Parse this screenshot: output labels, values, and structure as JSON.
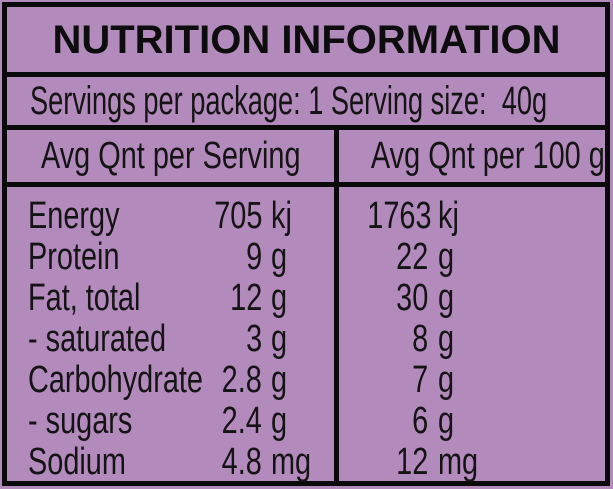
{
  "label": {
    "title": "NUTRITION INFORMATION",
    "servings_line": "Servings per package: 1 Serving size:  40g",
    "columns": [
      "Avg Qnt per Serving",
      "Avg Qnt per 100 g"
    ],
    "rows": [
      {
        "name": "Energy",
        "per_serving": "705",
        "per_serving_unit": "kj",
        "per_100g": "1763",
        "per_100g_unit": "kj"
      },
      {
        "name": "Protein",
        "per_serving": "9",
        "per_serving_unit": "g",
        "per_100g": "22",
        "per_100g_unit": "g"
      },
      {
        "name": "Fat, total",
        "per_serving": "12",
        "per_serving_unit": "g",
        "per_100g": "30",
        "per_100g_unit": "g"
      },
      {
        "name": "- saturated",
        "per_serving": "3",
        "per_serving_unit": "g",
        "per_100g": "8",
        "per_100g_unit": "g"
      },
      {
        "name": "Carbohydrate",
        "per_serving": "2.8",
        "per_serving_unit": "g",
        "per_100g": "7",
        "per_100g_unit": "g"
      },
      {
        "name": "- sugars",
        "per_serving": "2.4",
        "per_serving_unit": "g",
        "per_100g": "6",
        "per_100g_unit": "g"
      },
      {
        "name": "Sodium",
        "per_serving": "4.8",
        "per_serving_unit": "mg",
        "per_100g": "12",
        "per_100g_unit": "mg"
      }
    ],
    "colors": {
      "background": "#b38abc",
      "border": "#0a0a0a",
      "text": "#141414"
    }
  }
}
